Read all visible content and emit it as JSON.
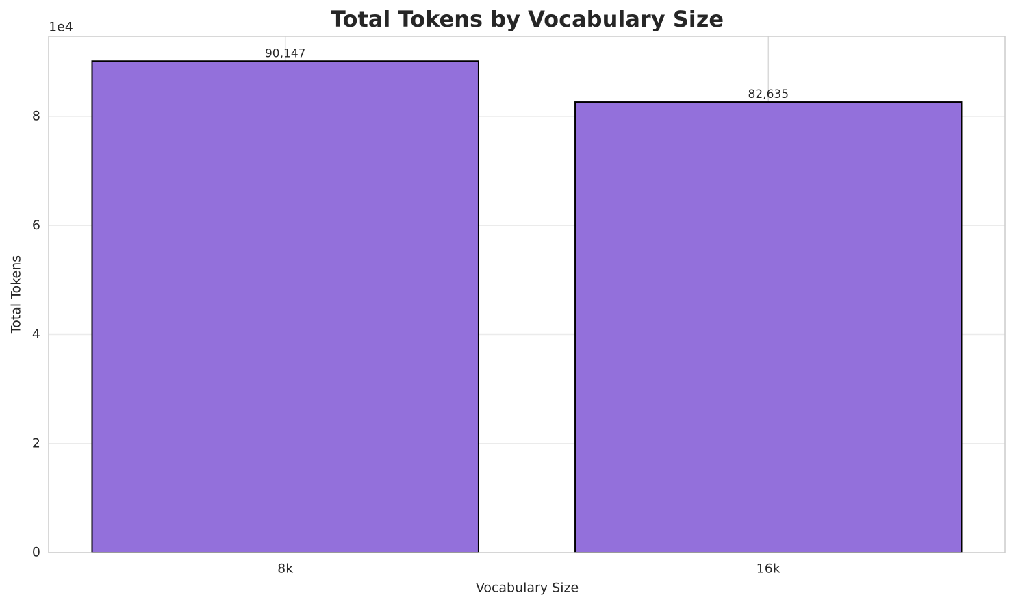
{
  "chart_data": {
    "type": "bar",
    "title": "Total Tokens by Vocabulary Size",
    "x_label": "Vocabulary Size",
    "y_label": "Total Tokens",
    "y_offset_label": "1e4",
    "categories": [
      "8k",
      "16k"
    ],
    "values": [
      90147,
      82635
    ],
    "value_labels": [
      "90,147",
      "82,635"
    ],
    "color": "#9370db",
    "edge_color": "#000000",
    "ylim": [
      0,
      94700
    ],
    "yticks": [
      0,
      {
        "value": 20000,
        "label": "2"
      },
      {
        "value": 40000,
        "label": "4"
      },
      {
        "value": 60000,
        "label": "6"
      },
      {
        "value": 80000,
        "label": "8"
      }
    ],
    "grid": true
  }
}
